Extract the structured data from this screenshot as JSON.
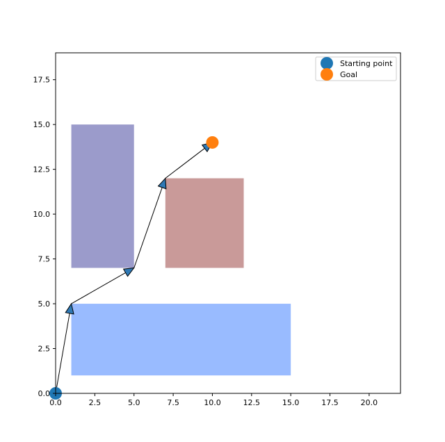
{
  "chart_data": {
    "type": "scatter",
    "title": "",
    "xlabel": "",
    "ylabel": "",
    "xlim": [
      0,
      22
    ],
    "ylim": [
      0,
      19
    ],
    "x_ticks": [
      0.0,
      2.5,
      5.0,
      7.5,
      10.0,
      12.5,
      15.0,
      17.5,
      20.0
    ],
    "x_tick_labels": [
      "0.0",
      "2.5",
      "5.0",
      "7.5",
      "10.0",
      "12.5",
      "15.0",
      "17.5",
      "20.0"
    ],
    "y_ticks": [
      0.0,
      2.5,
      5.0,
      7.5,
      10.0,
      12.5,
      15.0,
      17.5
    ],
    "y_tick_labels": [
      "0.0",
      "2.5",
      "5.0",
      "7.5",
      "10.0",
      "12.5",
      "15.0",
      "17.5"
    ],
    "grid": false,
    "legend_position": "top-right",
    "obstacles": [
      {
        "x": [
          1,
          15
        ],
        "y": [
          1,
          5
        ],
        "color": "#99bbff"
      },
      {
        "x": [
          1,
          5
        ],
        "y": [
          7,
          15
        ],
        "color": "#9b9bcb"
      },
      {
        "x": [
          7,
          12
        ],
        "y": [
          7,
          12
        ],
        "color": "#c99a99"
      }
    ],
    "path": [
      {
        "x": 0,
        "y": 0
      },
      {
        "x": 1,
        "y": 5
      },
      {
        "x": 5,
        "y": 7
      },
      {
        "x": 7,
        "y": 12
      },
      {
        "x": 10,
        "y": 14
      }
    ],
    "arrow_color": "#2f79b5",
    "series": [
      {
        "name": "Starting point",
        "x": [
          0
        ],
        "y": [
          0
        ],
        "color": "#1f77b4"
      },
      {
        "name": "Goal",
        "x": [
          10
        ],
        "y": [
          14
        ],
        "color": "#ff7f0e"
      }
    ]
  }
}
